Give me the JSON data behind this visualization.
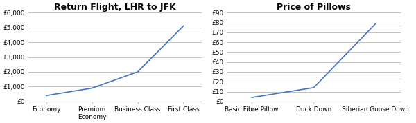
{
  "chart1": {
    "title": "Return Flight, LHR to JFK",
    "categories": [
      "Economy",
      "Premium\nEconomy",
      "Business Class",
      "First Class"
    ],
    "values": [
      400,
      900,
      2000,
      5100
    ],
    "ylim": [
      0,
      6000
    ],
    "yticks": [
      0,
      1000,
      2000,
      3000,
      4000,
      5000,
      6000
    ],
    "ytick_labels": [
      "£0",
      "£1,000",
      "£2,000",
      "£3,000",
      "£4,000",
      "£5,000",
      "£6,000"
    ]
  },
  "chart2": {
    "title": "Price of Pillows",
    "categories": [
      "Basic Fibre Pillow",
      "Duck Down",
      "Siberian Goose Down"
    ],
    "values": [
      4,
      14,
      79
    ],
    "ylim": [
      0,
      90
    ],
    "yticks": [
      0,
      10,
      20,
      30,
      40,
      50,
      60,
      70,
      80,
      90
    ],
    "ytick_labels": [
      "£0",
      "£10",
      "£20",
      "£30",
      "£40",
      "£50",
      "£60",
      "£70",
      "£80",
      "£90"
    ]
  },
  "line_color": "#4472C4",
  "grid_color": "#C0C0C0",
  "background_color": "#FFFFFF",
  "title_fontsize": 9,
  "tick_fontsize": 6.5
}
